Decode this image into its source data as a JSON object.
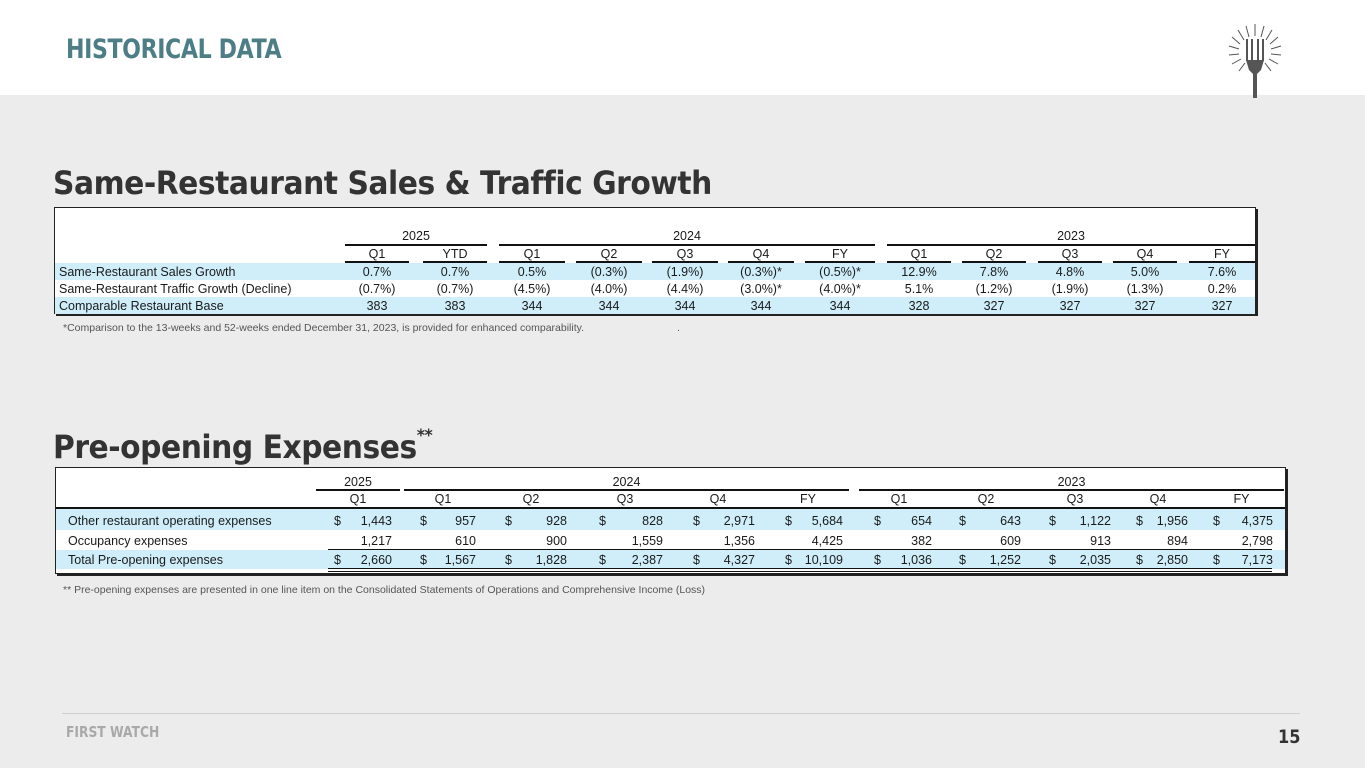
{
  "header": {
    "title": "HISTORICAL DATA"
  },
  "logo": {
    "icon": "fork-burst-icon"
  },
  "section1": {
    "title": "Same-Restaurant Sales & Traffic Growth",
    "years": [
      "2025",
      "2024",
      "2023"
    ],
    "columns": [
      "Q1",
      "YTD",
      "Q1",
      "Q2",
      "Q3",
      "Q4",
      "FY",
      "Q1",
      "Q2",
      "Q3",
      "Q4",
      "FY"
    ],
    "rows": [
      {
        "label": "Same-Restaurant Sales Growth",
        "values": [
          "0.7%",
          "0.7%",
          "0.5%",
          "(0.3%)",
          "(1.9%)",
          "(0.3%)*",
          "(0.5%)*",
          "12.9%",
          "7.8%",
          "4.8%",
          "5.0%",
          "7.6%"
        ]
      },
      {
        "label": "Same-Restaurant Traffic Growth (Decline)",
        "values": [
          "(0.7%)",
          "(0.7%)",
          "(4.5%)",
          "(4.0%)",
          "(4.4%)",
          "(3.0%)*",
          "(4.0%)*",
          "5.1%",
          "(1.2%)",
          "(1.9%)",
          "(1.3%)",
          "0.2%"
        ]
      },
      {
        "label": "Comparable Restaurant Base",
        "values": [
          "383",
          "383",
          "344",
          "344",
          "344",
          "344",
          "344",
          "328",
          "327",
          "327",
          "327",
          "327"
        ]
      }
    ],
    "note": "*Comparison to the 13-weeks and 52-weeks ended December 31, 2023, is provided for enhanced comparability.",
    "note_mark": "."
  },
  "section2": {
    "title": "Pre-opening Expenses",
    "title_sup": "**",
    "years": [
      "2025",
      "2024",
      "2023"
    ],
    "columns": [
      "Q1",
      "Q1",
      "Q2",
      "Q3",
      "Q4",
      "FY",
      "Q1",
      "Q2",
      "Q3",
      "Q4",
      "FY"
    ],
    "currency": "$",
    "rows": [
      {
        "label": "Other restaurant operating expenses",
        "values": [
          "1,443",
          "957",
          "928",
          "828",
          "2,971",
          "5,684",
          "654",
          "643",
          "1,122",
          "1,956",
          "4,375"
        ]
      },
      {
        "label": "Occupancy expenses",
        "values": [
          "1,217",
          "610",
          "900",
          "1,559",
          "1,356",
          "4,425",
          "382",
          "609",
          "913",
          "894",
          "2,798"
        ]
      },
      {
        "label": "Total Pre-opening expenses",
        "values": [
          "2,660",
          "1,567",
          "1,828",
          "2,387",
          "4,327",
          "10,109",
          "1,036",
          "1,252",
          "2,035",
          "2,850",
          "7,173"
        ]
      }
    ],
    "note": "** Pre-opening expenses are presented in one line item on the Consolidated Statements of Operations and Comprehensive Income (Loss)"
  },
  "footer": {
    "brand": "FIRST WATCH",
    "page": "15"
  }
}
